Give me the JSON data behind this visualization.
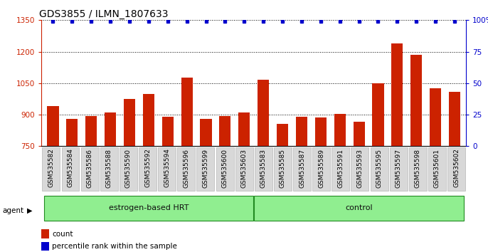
{
  "title": "GDS3855 / ILMN_1807633",
  "categories": [
    "GSM535582",
    "GSM535584",
    "GSM535586",
    "GSM535588",
    "GSM535590",
    "GSM535592",
    "GSM535594",
    "GSM535596",
    "GSM535599",
    "GSM535600",
    "GSM535603",
    "GSM535583",
    "GSM535585",
    "GSM535587",
    "GSM535589",
    "GSM535591",
    "GSM535593",
    "GSM535595",
    "GSM535597",
    "GSM535598",
    "GSM535601",
    "GSM535602"
  ],
  "bar_values": [
    940,
    880,
    895,
    910,
    975,
    1000,
    890,
    1075,
    880,
    895,
    910,
    1065,
    855,
    890,
    888,
    905,
    865,
    1048,
    1240,
    1185,
    1025,
    1010
  ],
  "bar_color": "#cc2200",
  "dot_color": "#0000cc",
  "ylim_left": [
    750,
    1350
  ],
  "ylim_right": [
    0,
    100
  ],
  "yticks_left": [
    750,
    900,
    1050,
    1200,
    1350
  ],
  "yticks_right": [
    0,
    25,
    50,
    75,
    100
  ],
  "group1_label": "estrogen-based HRT",
  "group2_label": "control",
  "group1_count": 11,
  "group2_count": 11,
  "legend_count_label": "count",
  "legend_pct_label": "percentile rank within the sample",
  "agent_label": "agent",
  "bar_width": 0.6,
  "tick_label_fontsize": 6.5,
  "title_fontsize": 10
}
